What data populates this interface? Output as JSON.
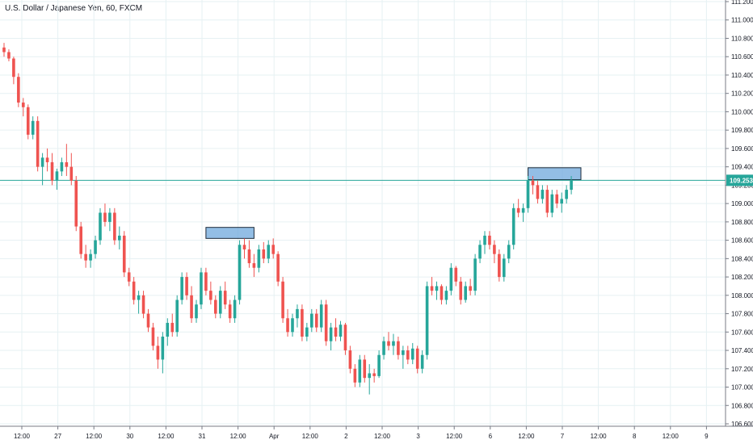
{
  "header": {
    "title": "U.S. Dollar / Japanese Yen, 60, FXCM"
  },
  "colors": {
    "up": "#26a69a",
    "down": "#ef5350",
    "grid": "#e6f1f3",
    "current_line": "#26a69a",
    "zone_fill": "#6fa8dc",
    "axis_border": "#787b86"
  },
  "chart_data": {
    "type": "candlestick",
    "title": "U.S. Dollar / Japanese Yen, 60, FXCM",
    "ylim": [
      106.6,
      111.2
    ],
    "y_ticks": [
      106.6,
      106.8,
      107.0,
      107.2,
      107.4,
      107.6,
      107.8,
      108.0,
      108.2,
      108.4,
      108.6,
      108.8,
      109.0,
      109.2,
      109.4,
      109.6,
      109.8,
      110.0,
      110.2,
      110.4,
      110.6,
      110.8,
      111.0,
      111.2
    ],
    "y_tick_labels": [
      "106.600",
      "106.800",
      "107.000",
      "107.200",
      "107.400",
      "107.600",
      "107.800",
      "108.000",
      "108.200",
      "108.400",
      "108.600",
      "108.800",
      "109.000",
      "109.200",
      "109.400",
      "109.600",
      "109.800",
      "110.000",
      "110.200",
      "110.400",
      "110.600",
      "110.800",
      "111.000",
      "111.200"
    ],
    "x_tick_labels": [
      "12:00",
      "27",
      "12:00",
      "30",
      "12:00",
      "31",
      "12:00",
      "Apr",
      "12:00",
      "2",
      "12:00",
      "3",
      "12:00",
      "6",
      "12:00",
      "7",
      "12:00",
      "8",
      "12:00",
      "9"
    ],
    "current_price": 109.253,
    "current_price_label": "109.253",
    "grid": true,
    "resistance_zones": [
      {
        "y_low": 108.62,
        "y_high": 108.74
      },
      {
        "y_low": 109.26,
        "y_high": 109.39
      }
    ],
    "ohlc": [
      [
        110.7,
        110.75,
        110.6,
        110.65
      ],
      [
        110.65,
        110.68,
        110.55,
        110.58
      ],
      [
        110.58,
        110.6,
        110.3,
        110.38
      ],
      [
        110.38,
        110.42,
        110.05,
        110.1
      ],
      [
        110.1,
        110.15,
        109.95,
        110.05
      ],
      [
        110.05,
        110.08,
        109.7,
        109.75
      ],
      [
        109.75,
        109.95,
        109.7,
        109.9
      ],
      [
        109.9,
        109.95,
        109.35,
        109.4
      ],
      [
        109.4,
        109.55,
        109.2,
        109.5
      ],
      [
        109.5,
        109.6,
        109.35,
        109.45
      ],
      [
        109.45,
        109.55,
        109.2,
        109.25
      ],
      [
        109.25,
        109.38,
        109.15,
        109.35
      ],
      [
        109.35,
        109.5,
        109.3,
        109.45
      ],
      [
        109.45,
        109.65,
        109.3,
        109.4
      ],
      [
        109.4,
        109.55,
        109.2,
        109.25
      ],
      [
        109.25,
        109.3,
        108.7,
        108.75
      ],
      [
        108.75,
        108.8,
        108.4,
        108.45
      ],
      [
        108.45,
        108.55,
        108.3,
        108.38
      ],
      [
        108.38,
        108.5,
        108.3,
        108.45
      ],
      [
        108.45,
        108.65,
        108.4,
        108.6
      ],
      [
        108.6,
        108.95,
        108.55,
        108.9
      ],
      [
        108.9,
        109.0,
        108.75,
        108.8
      ],
      [
        108.8,
        108.95,
        108.7,
        108.9
      ],
      [
        108.9,
        108.95,
        108.55,
        108.6
      ],
      [
        108.6,
        108.75,
        108.5,
        108.65
      ],
      [
        108.65,
        108.7,
        108.2,
        108.25
      ],
      [
        108.25,
        108.3,
        108.1,
        108.15
      ],
      [
        108.15,
        108.2,
        107.9,
        107.95
      ],
      [
        107.95,
        108.05,
        107.8,
        108.0
      ],
      [
        108.0,
        108.05,
        107.75,
        107.8
      ],
      [
        107.8,
        107.85,
        107.6,
        107.65
      ],
      [
        107.65,
        107.7,
        107.4,
        107.45
      ],
      [
        107.45,
        107.55,
        107.2,
        107.3
      ],
      [
        107.3,
        107.6,
        107.15,
        107.55
      ],
      [
        107.55,
        107.75,
        107.45,
        107.7
      ],
      [
        107.7,
        107.8,
        107.55,
        107.6
      ],
      [
        107.6,
        108.0,
        107.55,
        107.95
      ],
      [
        107.95,
        108.25,
        107.9,
        108.2
      ],
      [
        108.2,
        108.25,
        107.95,
        108.0
      ],
      [
        108.0,
        108.1,
        107.7,
        107.75
      ],
      [
        107.75,
        107.95,
        107.7,
        107.9
      ],
      [
        107.9,
        108.3,
        107.85,
        108.25
      ],
      [
        108.25,
        108.3,
        108.0,
        108.05
      ],
      [
        108.05,
        108.15,
        107.9,
        107.95
      ],
      [
        107.95,
        108.0,
        107.75,
        107.8
      ],
      [
        107.8,
        108.1,
        107.75,
        108.05
      ],
      [
        108.05,
        108.15,
        107.85,
        107.9
      ],
      [
        107.9,
        107.95,
        107.7,
        107.75
      ],
      [
        107.75,
        108.0,
        107.7,
        107.95
      ],
      [
        107.95,
        108.6,
        107.9,
        108.55
      ],
      [
        108.55,
        108.62,
        108.4,
        108.5
      ],
      [
        108.5,
        108.6,
        108.3,
        108.35
      ],
      [
        108.35,
        108.45,
        108.2,
        108.3
      ],
      [
        108.3,
        108.55,
        108.25,
        108.5
      ],
      [
        108.5,
        108.58,
        108.35,
        108.4
      ],
      [
        108.4,
        108.6,
        108.35,
        108.55
      ],
      [
        108.55,
        108.62,
        108.4,
        108.45
      ],
      [
        108.45,
        108.48,
        108.1,
        108.15
      ],
      [
        108.15,
        108.2,
        107.7,
        107.75
      ],
      [
        107.75,
        107.85,
        107.55,
        107.6
      ],
      [
        107.6,
        107.8,
        107.55,
        107.75
      ],
      [
        107.75,
        107.9,
        107.65,
        107.85
      ],
      [
        107.85,
        107.9,
        107.5,
        107.55
      ],
      [
        107.55,
        107.7,
        107.5,
        107.65
      ],
      [
        107.65,
        107.85,
        107.6,
        107.8
      ],
      [
        107.8,
        107.85,
        107.6,
        107.65
      ],
      [
        107.65,
        107.95,
        107.6,
        107.9
      ],
      [
        107.9,
        107.95,
        107.45,
        107.5
      ],
      [
        107.5,
        107.7,
        107.4,
        107.65
      ],
      [
        107.65,
        107.75,
        107.5,
        107.55
      ],
      [
        107.55,
        107.72,
        107.5,
        107.68
      ],
      [
        107.68,
        107.7,
        107.35,
        107.4
      ],
      [
        107.4,
        107.45,
        107.15,
        107.2
      ],
      [
        107.2,
        107.25,
        107.0,
        107.05
      ],
      [
        107.05,
        107.35,
        107.0,
        107.3
      ],
      [
        107.3,
        107.35,
        107.05,
        107.1
      ],
      [
        107.1,
        107.25,
        106.92,
        107.15
      ],
      [
        107.15,
        107.2,
        107.05,
        107.12
      ],
      [
        107.12,
        107.4,
        107.1,
        107.35
      ],
      [
        107.35,
        107.55,
        107.3,
        107.5
      ],
      [
        107.5,
        107.6,
        107.4,
        107.45
      ],
      [
        107.45,
        107.58,
        107.35,
        107.5
      ],
      [
        107.5,
        107.55,
        107.3,
        107.35
      ],
      [
        107.35,
        107.45,
        107.2,
        107.4
      ],
      [
        107.4,
        107.45,
        107.25,
        107.3
      ],
      [
        107.3,
        107.48,
        107.25,
        107.42
      ],
      [
        107.42,
        107.45,
        107.15,
        107.2
      ],
      [
        107.2,
        107.4,
        107.15,
        107.35
      ],
      [
        107.35,
        108.15,
        107.3,
        108.1
      ],
      [
        108.1,
        108.2,
        108.0,
        108.05
      ],
      [
        108.05,
        108.15,
        107.95,
        108.1
      ],
      [
        108.1,
        108.12,
        107.9,
        107.95
      ],
      [
        107.95,
        108.1,
        107.9,
        108.05
      ],
      [
        108.05,
        108.35,
        108.0,
        108.3
      ],
      [
        108.3,
        108.32,
        108.1,
        108.15
      ],
      [
        108.15,
        108.2,
        107.9,
        107.95
      ],
      [
        107.95,
        108.15,
        107.92,
        108.1
      ],
      [
        108.1,
        108.18,
        108.0,
        108.05
      ],
      [
        108.05,
        108.45,
        108.0,
        108.4
      ],
      [
        108.4,
        108.6,
        108.35,
        108.55
      ],
      [
        108.55,
        108.7,
        108.45,
        108.65
      ],
      [
        108.65,
        108.7,
        108.5,
        108.55
      ],
      [
        108.55,
        108.6,
        108.35,
        108.45
      ],
      [
        108.45,
        108.5,
        108.15,
        108.2
      ],
      [
        108.2,
        108.45,
        108.15,
        108.4
      ],
      [
        108.4,
        108.6,
        108.35,
        108.55
      ],
      [
        108.55,
        109.0,
        108.5,
        108.95
      ],
      [
        108.95,
        109.05,
        108.85,
        108.9
      ],
      [
        108.9,
        109.0,
        108.8,
        108.95
      ],
      [
        108.95,
        109.3,
        108.9,
        109.25
      ],
      [
        109.25,
        109.3,
        109.1,
        109.2
      ],
      [
        109.2,
        109.25,
        109.0,
        109.05
      ],
      [
        109.05,
        109.2,
        109.0,
        109.15
      ],
      [
        109.15,
        109.2,
        108.85,
        108.9
      ],
      [
        108.9,
        109.15,
        108.85,
        109.1
      ],
      [
        109.1,
        109.15,
        108.95,
        109.0
      ],
      [
        109.0,
        109.12,
        108.9,
        109.05
      ],
      [
        109.05,
        109.2,
        109.0,
        109.15
      ],
      [
        109.15,
        109.3,
        109.1,
        109.25
      ]
    ]
  }
}
